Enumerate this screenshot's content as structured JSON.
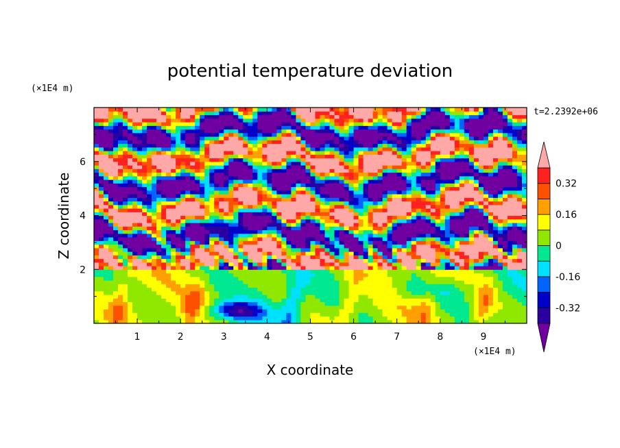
{
  "chart_data": {
    "type": "heatmap",
    "title": "potential temperature deviation",
    "xlabel": "X coordinate",
    "ylabel": "Z coordinate",
    "x_unit": "(×1E4 m)",
    "y_unit": "(×1E4 m)",
    "time_label": "t=2.2392e+06",
    "xlim": [
      0,
      10
    ],
    "ylim": [
      0,
      8
    ],
    "x_ticks": [
      1,
      2,
      3,
      4,
      5,
      6,
      7,
      8,
      9
    ],
    "y_ticks": [
      2,
      4,
      6
    ],
    "colorbar": {
      "levels": [
        -0.4,
        -0.32,
        -0.24,
        -0.16,
        -0.08,
        0,
        0.08,
        0.16,
        0.24,
        0.32,
        0.4
      ],
      "tick_labels": [
        "0.32",
        "0.16",
        "0",
        "-0.16",
        "-0.32"
      ],
      "tick_values": [
        0.32,
        0.16,
        0,
        -0.16,
        -0.32
      ],
      "colors": [
        "#7000a0",
        "#2b00a0",
        "#0000c8",
        "#0064ff",
        "#00e0ff",
        "#00e890",
        "#90e800",
        "#ffff00",
        "#ffa000",
        "#ff5000",
        "#ff2020",
        "#ffa8a8"
      ],
      "extend": "both"
    }
  }
}
